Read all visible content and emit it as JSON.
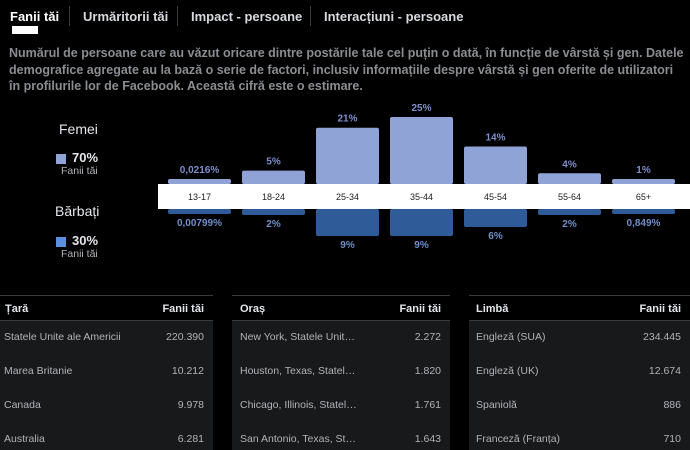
{
  "tabs": [
    {
      "label": "Fanii tăi",
      "active": true
    },
    {
      "label": "Urmăritorii tăi"
    },
    {
      "label": "Impact - persoane"
    },
    {
      "label": "Interacțiuni - persoane"
    }
  ],
  "description": "Numărul de persoane care au văzut oricare dintre postările tale cel puțin o dată, în funcție de vârstă și gen. Datele demografice agregate au la bază o serie de factori, inclusiv informațiile despre vârstă și gen oferite de utilizatori în profilurile lor de Facebook. Această cifră este o estimare.",
  "legend": {
    "women": {
      "title": "Femei",
      "pct": "70%",
      "sub": "Fanii tăi",
      "color": "#8fa3d6"
    },
    "men": {
      "title": "Bărbați",
      "pct": "30%",
      "sub": "Fanii tăi",
      "color": "#5d8fe0"
    }
  },
  "chart_data": {
    "type": "bar",
    "categories": [
      "13-17",
      "18-24",
      "25-34",
      "35-44",
      "45-54",
      "55-64",
      "65+"
    ],
    "series": [
      {
        "name": "Femei",
        "values": [
          0.0216,
          5,
          21,
          25,
          14,
          4,
          1
        ],
        "labels": [
          "0,0216%",
          "5%",
          "21%",
          "25%",
          "14%",
          "4%",
          "1%"
        ]
      },
      {
        "name": "Bărbați",
        "values": [
          0.00799,
          2,
          9,
          9,
          6,
          2,
          0.849
        ],
        "labels": [
          "0,00799%",
          "2%",
          "9%",
          "9%",
          "6%",
          "2%",
          "0,849%"
        ]
      }
    ]
  },
  "tables": {
    "country": {
      "col1": "Țară",
      "col2": "Fanii tăi",
      "rows": [
        {
          "name": "Statele Unite ale Americii",
          "value": "220.390"
        },
        {
          "name": "Marea Britanie",
          "value": "10.212"
        },
        {
          "name": "Canada",
          "value": "9.978"
        },
        {
          "name": "Australia",
          "value": "6.281"
        }
      ]
    },
    "city": {
      "col1": "Oraș",
      "col2": "Fanii tăi",
      "rows": [
        {
          "name": "New York, Statele Unit…",
          "value": "2.272"
        },
        {
          "name": "Houston, Texas, Statel…",
          "value": "1.820"
        },
        {
          "name": "Chicago, Illinois, Statel…",
          "value": "1.761"
        },
        {
          "name": "San Antonio, Texas, St…",
          "value": "1.643"
        }
      ]
    },
    "language": {
      "col1": "Limbă",
      "col2": "Fanii tăi",
      "rows": [
        {
          "name": "Engleză (SUA)",
          "value": "234.445"
        },
        {
          "name": "Engleză (UK)",
          "value": "12.674"
        },
        {
          "name": "Spaniolă",
          "value": "886"
        },
        {
          "name": "Franceză (Franța)",
          "value": "710"
        }
      ]
    }
  }
}
